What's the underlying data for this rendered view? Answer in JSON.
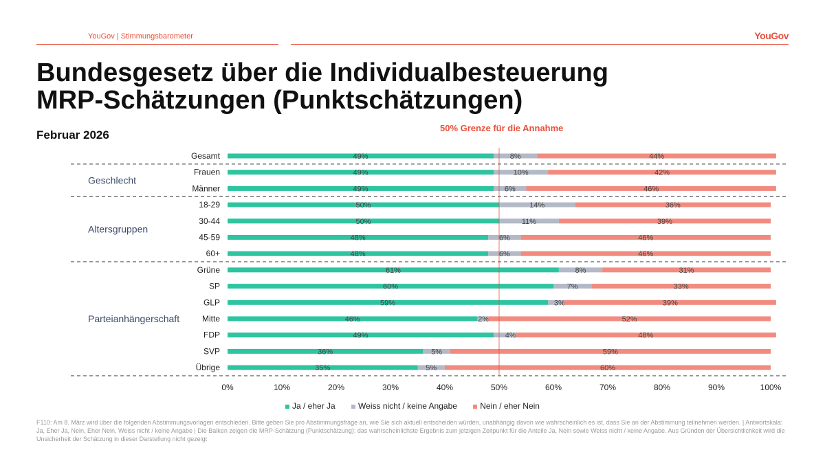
{
  "header": {
    "source": "YouGov | Stimmungsbarometer",
    "logo": "YouGov"
  },
  "title_line1": "Bundesgesetz über die Individualbesteuerung",
  "title_line2": "MRP-Schätzungen (Punktschätzungen)",
  "subtitle": "Februar 2026",
  "footnote": "F110: Am 8. März wird über die folgenden Abstimmungsvorlagen entschieden. Bitte geben Sie pro Abstimmungsfrage an, wie Sie sich aktuell entscheiden würden, unabhängig davon wie wahrscheinlich es ist, dass Sie an der Abstimmung teilnehmen werden. | Antwortskala: Ja, Eher Ja, Nein, Eher Nein, Weiss nicht / keine Angabe | Die Balken zeigen die MRP-Schätzung (Punktschätzung): das wahrscheinlichste Ergebnis zum jetzigen Zeitpunkt für die Anteile Ja, Nein sowie Weiss nicht / keine Angabe. Aus Gründen der Übersichtlichkeit wird die Unsicherheit der Schätzung in dieser Darstellung nicht gezeigt",
  "colors": {
    "ja": "#2ec4a0",
    "weiss": "#b3b9c6",
    "nein": "#f28b7f",
    "accent": "#e8503a"
  },
  "chart_data": {
    "type": "bar",
    "orientation": "horizontal",
    "stacked": true,
    "reference_line": {
      "value": 50,
      "label": "50% Grenze für die Annahme"
    },
    "xlim": [
      0,
      100
    ],
    "x_ticks": [
      "0%",
      "10%",
      "20%",
      "30%",
      "40%",
      "50%",
      "60%",
      "70%",
      "80%",
      "90%",
      "100%"
    ],
    "categories": [
      "Gesamt",
      "Frauen",
      "Männer",
      "18-29",
      "30-44",
      "45-59",
      "60+",
      "Grüne",
      "SP",
      "GLP",
      "Mitte",
      "FDP",
      "SVP",
      "Übrige"
    ],
    "groups": [
      {
        "label": "Geschlecht",
        "from": 1,
        "to": 2
      },
      {
        "label": "Altersgruppen",
        "from": 3,
        "to": 6
      },
      {
        "label": "Parteianhängerschaft",
        "from": 7,
        "to": 13
      }
    ],
    "series": [
      {
        "name": "Ja / eher Ja",
        "values": [
          49,
          49,
          49,
          50,
          50,
          48,
          48,
          61,
          60,
          59,
          46,
          49,
          36,
          35
        ]
      },
      {
        "name": "Weiss nicht / keine Angabe",
        "values": [
          8,
          10,
          6,
          14,
          11,
          6,
          6,
          8,
          7,
          3,
          2,
          4,
          5,
          5
        ]
      },
      {
        "name": "Nein / eher Nein",
        "values": [
          44,
          42,
          46,
          36,
          39,
          46,
          46,
          31,
          33,
          39,
          52,
          48,
          59,
          60
        ]
      }
    ]
  }
}
